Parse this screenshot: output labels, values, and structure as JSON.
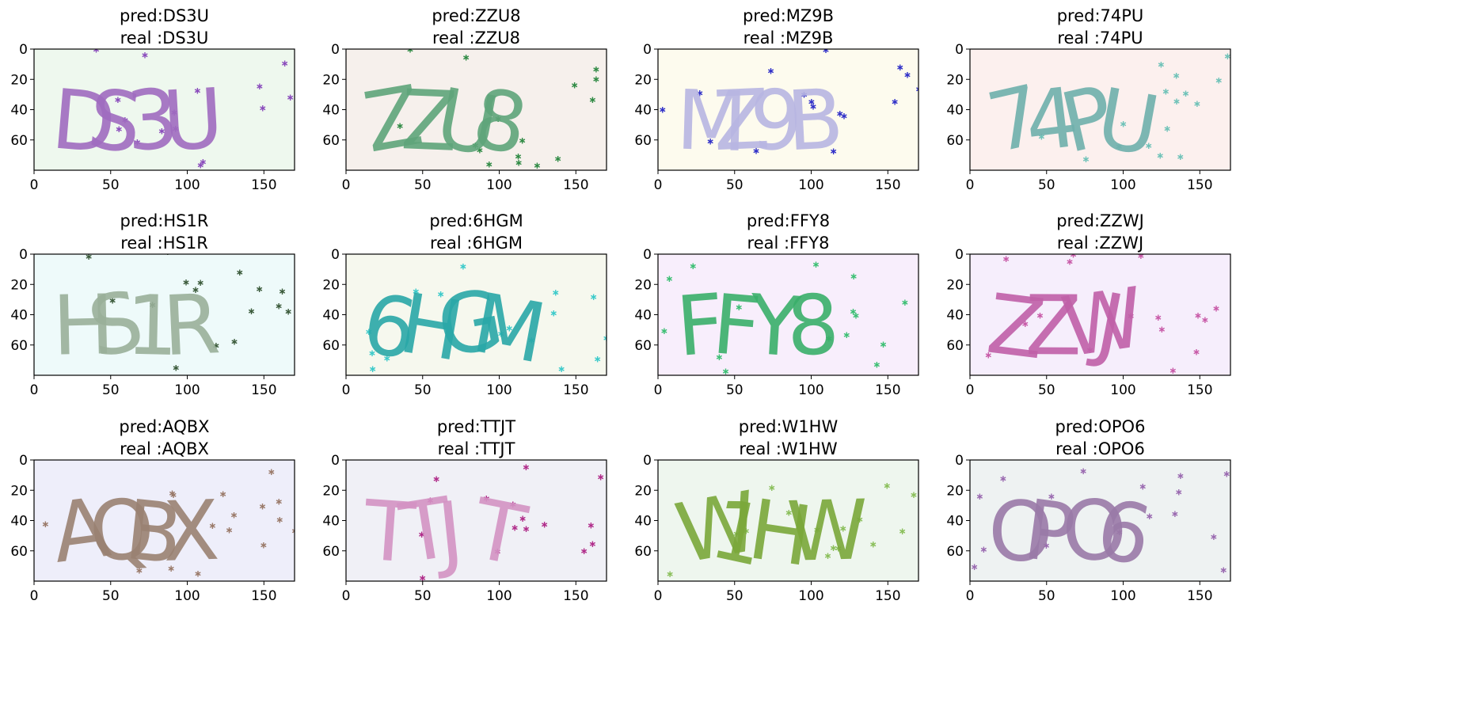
{
  "chart_data": [
    {
      "type": "image",
      "title_pred": "pred:DS3U",
      "title_real": "real :DS3U",
      "captcha_text": "DS3U",
      "background_color": "#eef8ee",
      "text_color": "#a06cc0",
      "noise_color": "#8a4cbc",
      "x_ticks": [
        "0",
        "50",
        "100",
        "150"
      ],
      "y_ticks": [
        "0",
        "20",
        "40",
        "60"
      ],
      "xlim": [
        0,
        170
      ],
      "ylim": [
        80,
        0
      ]
    },
    {
      "type": "image",
      "title_pred": "pred:ZZU8",
      "title_real": "real :ZZU8",
      "captcha_text": "ZZU8",
      "background_color": "#f6f0ec",
      "text_color": "#5fa57a",
      "noise_color": "#2f8a44",
      "x_ticks": [
        "0",
        "50",
        "100",
        "150"
      ],
      "y_ticks": [
        "0",
        "20",
        "40",
        "60"
      ],
      "xlim": [
        0,
        170
      ],
      "ylim": [
        80,
        0
      ]
    },
    {
      "type": "image",
      "title_pred": "pred:MZ9B",
      "title_real": "real :MZ9B",
      "captcha_text": "MZ9B",
      "background_color": "#fdfbee",
      "text_color": "#b8b6e2",
      "noise_color": "#2f2fc8",
      "x_ticks": [
        "0",
        "50",
        "100",
        "150"
      ],
      "y_ticks": [
        "0",
        "20",
        "40",
        "60"
      ],
      "xlim": [
        0,
        170
      ],
      "ylim": [
        80,
        0
      ]
    },
    {
      "type": "image",
      "title_pred": "pred:74PU",
      "title_real": "real :74PU",
      "captcha_text": "74PU",
      "background_color": "#fcf0ee",
      "text_color": "#6fb0ac",
      "noise_color": "#6fc2b8",
      "x_ticks": [
        "0",
        "50",
        "100",
        "150"
      ],
      "y_ticks": [
        "0",
        "20",
        "40",
        "60"
      ],
      "xlim": [
        0,
        170
      ],
      "ylim": [
        80,
        0
      ]
    },
    {
      "type": "image",
      "title_pred": "pred:HS1R",
      "title_real": "real :HS1R",
      "captcha_text": "HS1R",
      "background_color": "#eefafa",
      "text_color": "#9ab09a",
      "noise_color": "#3a5a3a",
      "x_ticks": [
        "0",
        "50",
        "100",
        "150"
      ],
      "y_ticks": [
        "0",
        "20",
        "40",
        "60"
      ],
      "xlim": [
        0,
        170
      ],
      "ylim": [
        80,
        0
      ]
    },
    {
      "type": "image",
      "title_pred": "pred:6HGM",
      "title_real": "real :6HGM",
      "captcha_text": "6HGM",
      "background_color": "#f6f8ee",
      "text_color": "#2aa8a8",
      "noise_color": "#3ccaca",
      "x_ticks": [
        "0",
        "50",
        "100",
        "150"
      ],
      "y_ticks": [
        "0",
        "20",
        "40",
        "60"
      ],
      "xlim": [
        0,
        170
      ],
      "ylim": [
        80,
        0
      ]
    },
    {
      "type": "image",
      "title_pred": "pred:FFY8",
      "title_real": "real :FFY8",
      "captcha_text": "FFY8",
      "background_color": "#f8eefc",
      "text_color": "#3aaf6a",
      "noise_color": "#3cbf74",
      "x_ticks": [
        "0",
        "50",
        "100",
        "150"
      ],
      "y_ticks": [
        "0",
        "20",
        "40",
        "60"
      ],
      "xlim": [
        0,
        170
      ],
      "ylim": [
        80,
        0
      ]
    },
    {
      "type": "image",
      "title_pred": "pred:ZZWJ",
      "title_real": "real :ZZWJ",
      "captcha_text": "ZZWJ",
      "background_color": "#f6eefc",
      "text_color": "#c060a8",
      "noise_color": "#c85aa8",
      "x_ticks": [
        "0",
        "50",
        "100",
        "150"
      ],
      "y_ticks": [
        "0",
        "20",
        "40",
        "60"
      ],
      "xlim": [
        0,
        170
      ],
      "ylim": [
        80,
        0
      ]
    },
    {
      "type": "image",
      "title_pred": "pred:AQBX",
      "title_real": "real :AQBX",
      "captcha_text": "AQBX",
      "background_color": "#eeeefa",
      "text_color": "#9a8272",
      "noise_color": "#9a7a6a",
      "x_ticks": [
        "0",
        "50",
        "100",
        "150"
      ],
      "y_ticks": [
        "0",
        "20",
        "40",
        "60"
      ],
      "xlim": [
        0,
        170
      ],
      "ylim": [
        80,
        0
      ]
    },
    {
      "type": "image",
      "title_pred": "pred:TTJT",
      "title_real": "real :TTJT",
      "captcha_text": "TTJT",
      "background_color": "#f0f0f6",
      "text_color": "#d493c4",
      "noise_color": "#b02c8a",
      "x_ticks": [
        "0",
        "50",
        "100",
        "150"
      ],
      "y_ticks": [
        "0",
        "20",
        "40",
        "60"
      ],
      "xlim": [
        0,
        170
      ],
      "ylim": [
        80,
        0
      ]
    },
    {
      "type": "image",
      "title_pred": "pred:W1HW",
      "title_real": "real :W1HW",
      "captcha_text": "W1HW",
      "background_color": "#eef6ee",
      "text_color": "#7aa83a",
      "noise_color": "#8abf5a",
      "x_ticks": [
        "0",
        "50",
        "100",
        "150"
      ],
      "y_ticks": [
        "0",
        "20",
        "40",
        "60"
      ],
      "xlim": [
        0,
        170
      ],
      "ylim": [
        80,
        0
      ]
    },
    {
      "type": "image",
      "title_pred": "pred:OPO6",
      "title_real": "real :OPO6",
      "captcha_text": "OPO6",
      "background_color": "#eef2f2",
      "text_color": "#9a7aa8",
      "noise_color": "#9a6ab0",
      "x_ticks": [
        "0",
        "50",
        "100",
        "150"
      ],
      "y_ticks": [
        "0",
        "20",
        "40",
        "60"
      ],
      "xlim": [
        0,
        170
      ],
      "ylim": [
        80,
        0
      ]
    }
  ]
}
